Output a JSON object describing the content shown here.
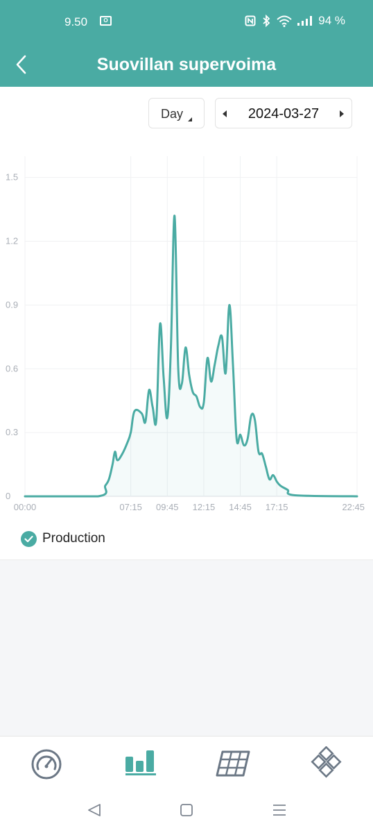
{
  "status_bar": {
    "time": "9.50",
    "app_badge": "O",
    "battery": "94 %"
  },
  "header": {
    "title": "Suovillan supervoima"
  },
  "controls": {
    "period": "Day",
    "date": "2024-03-27"
  },
  "chart_data": {
    "type": "area",
    "x_ticks": [
      "00:00",
      "07:15",
      "09:45",
      "12:15",
      "14:45",
      "17:15",
      "22:45"
    ],
    "y_ticks": [
      "0",
      "0.3",
      "0.6",
      "0.9",
      "1.2",
      "1.5"
    ],
    "ylim": [
      0,
      1.6
    ],
    "grid": true,
    "legend_position": "bottom-left",
    "series": [
      {
        "name": "Production",
        "color": "#4aaba3",
        "points": [
          [
            "00:00",
            0
          ],
          [
            "05:00",
            0
          ],
          [
            "05:30",
            0.05
          ],
          [
            "05:45",
            0.08
          ],
          [
            "06:00",
            0.15
          ],
          [
            "06:10",
            0.21
          ],
          [
            "06:20",
            0.17
          ],
          [
            "06:40",
            0.2
          ],
          [
            "07:00",
            0.25
          ],
          [
            "07:15",
            0.3
          ],
          [
            "07:30",
            0.4
          ],
          [
            "08:00",
            0.39
          ],
          [
            "08:15",
            0.35
          ],
          [
            "08:30",
            0.5
          ],
          [
            "08:45",
            0.42
          ],
          [
            "09:00",
            0.36
          ],
          [
            "09:15",
            0.81
          ],
          [
            "09:30",
            0.56
          ],
          [
            "09:45",
            0.37
          ],
          [
            "10:00",
            0.7
          ],
          [
            "10:15",
            1.32
          ],
          [
            "10:30",
            0.6
          ],
          [
            "10:45",
            0.53
          ],
          [
            "11:00",
            0.7
          ],
          [
            "11:15",
            0.57
          ],
          [
            "11:30",
            0.49
          ],
          [
            "11:45",
            0.47
          ],
          [
            "12:00",
            0.42
          ],
          [
            "12:15",
            0.44
          ],
          [
            "12:30",
            0.65
          ],
          [
            "12:45",
            0.54
          ],
          [
            "13:00",
            0.62
          ],
          [
            "13:15",
            0.71
          ],
          [
            "13:30",
            0.75
          ],
          [
            "13:45",
            0.58
          ],
          [
            "14:00",
            0.9
          ],
          [
            "14:15",
            0.62
          ],
          [
            "14:30",
            0.27
          ],
          [
            "14:45",
            0.29
          ],
          [
            "15:00",
            0.24
          ],
          [
            "15:15",
            0.27
          ],
          [
            "15:30",
            0.38
          ],
          [
            "15:45",
            0.36
          ],
          [
            "16:00",
            0.21
          ],
          [
            "16:15",
            0.2
          ],
          [
            "16:30",
            0.14
          ],
          [
            "16:45",
            0.08
          ],
          [
            "17:00",
            0.1
          ],
          [
            "17:15",
            0.07
          ],
          [
            "17:30",
            0.05
          ],
          [
            "18:00",
            0.03
          ],
          [
            "18:30",
            0.005
          ],
          [
            "22:45",
            0
          ]
        ]
      }
    ]
  },
  "legend": {
    "label": "Production"
  },
  "tabs": [
    {
      "icon": "gauge-icon"
    },
    {
      "icon": "bar-chart-icon"
    },
    {
      "icon": "solar-panel-icon"
    },
    {
      "icon": "devices-grid-icon"
    }
  ]
}
